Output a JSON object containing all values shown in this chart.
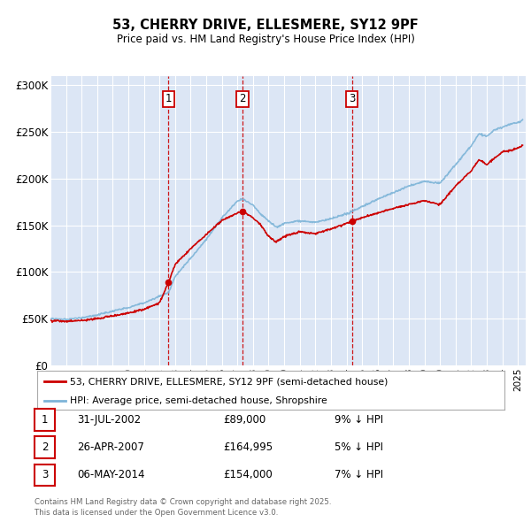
{
  "title": "53, CHERRY DRIVE, ELLESMERE, SY12 9PF",
  "subtitle": "Price paid vs. HM Land Registry's House Price Index (HPI)",
  "background_color": "#ffffff",
  "plot_background": "#dce6f5",
  "grid_color": "#ffffff",
  "yticks": [
    0,
    50000,
    100000,
    150000,
    200000,
    250000,
    300000
  ],
  "ytick_labels": [
    "£0",
    "£50K",
    "£100K",
    "£150K",
    "£200K",
    "£250K",
    "£300K"
  ],
  "ylim": [
    0,
    310000
  ],
  "xlim_start": 1995.0,
  "xlim_end": 2025.5,
  "purchases": [
    {
      "date_num": 2002.58,
      "price": 89000,
      "label": "1"
    },
    {
      "date_num": 2007.32,
      "price": 164995,
      "label": "2"
    },
    {
      "date_num": 2014.35,
      "price": 154000,
      "label": "3"
    }
  ],
  "legend_entries": [
    "53, CHERRY DRIVE, ELLESMERE, SY12 9PF (semi-detached house)",
    "HPI: Average price, semi-detached house, Shropshire"
  ],
  "table_rows": [
    {
      "num": "1",
      "date": "31-JUL-2002",
      "price": "£89,000",
      "hpi": "9% ↓ HPI"
    },
    {
      "num": "2",
      "date": "26-APR-2007",
      "price": "£164,995",
      "hpi": "5% ↓ HPI"
    },
    {
      "num": "3",
      "date": "06-MAY-2014",
      "price": "£154,000",
      "hpi": "7% ↓ HPI"
    }
  ],
  "footnote": "Contains HM Land Registry data © Crown copyright and database right 2025.\nThis data is licensed under the Open Government Licence v3.0.",
  "hpi_color": "#7db4d8",
  "price_color": "#cc0000",
  "vline_color": "#cc0000",
  "box_color": "#cc0000"
}
